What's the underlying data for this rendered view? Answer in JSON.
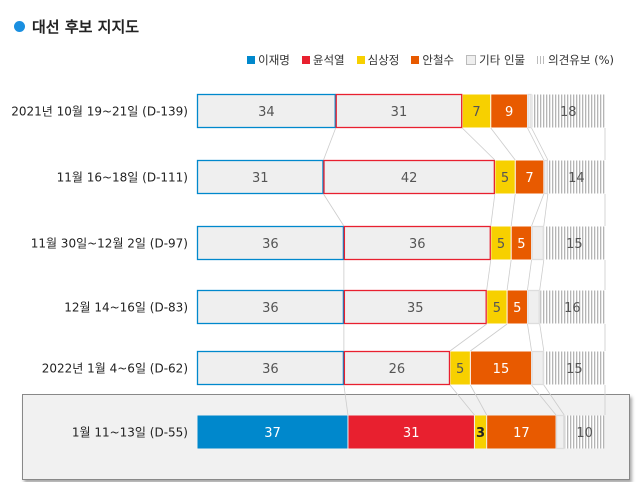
{
  "title": "대선 후보 지지도",
  "legend_unit": "(%)",
  "chart_data": {
    "type": "bar",
    "orientation": "horizontal",
    "stacked": true,
    "title": "대선 후보 지지도",
    "categories": [
      "2021년 10월 19~21일 (D-139)",
      "11월 16~18일 (D-111)",
      "11월 30일~12월 2일 (D-97)",
      "12월 14~16일 (D-83)",
      "2022년 1월 4~6일 (D-62)",
      "1월 11~13일 (D-55)"
    ],
    "highlighted_category": "1월 11~13일 (D-55)",
    "series": [
      {
        "name": "이재명",
        "color": "#0088cc",
        "values": [
          34,
          31,
          36,
          36,
          36,
          37
        ]
      },
      {
        "name": "윤석열",
        "color": "#e8202f",
        "values": [
          31,
          42,
          36,
          35,
          26,
          31
        ]
      },
      {
        "name": "심상정",
        "color": "#f7d000",
        "values": [
          7,
          5,
          5,
          5,
          5,
          3
        ]
      },
      {
        "name": "안철수",
        "color": "#e85a00",
        "values": [
          9,
          7,
          5,
          5,
          15,
          17
        ]
      },
      {
        "name": "기타 인물",
        "color": "#efefef",
        "values": [
          1,
          1,
          3,
          3,
          3,
          2
        ],
        "unlabeled": true
      },
      {
        "name": "의견유보",
        "color": "#bbbbbb",
        "pattern": "vertical-hatch",
        "values": [
          18,
          14,
          15,
          16,
          15,
          10
        ]
      }
    ],
    "xlim": [
      0,
      100
    ]
  }
}
